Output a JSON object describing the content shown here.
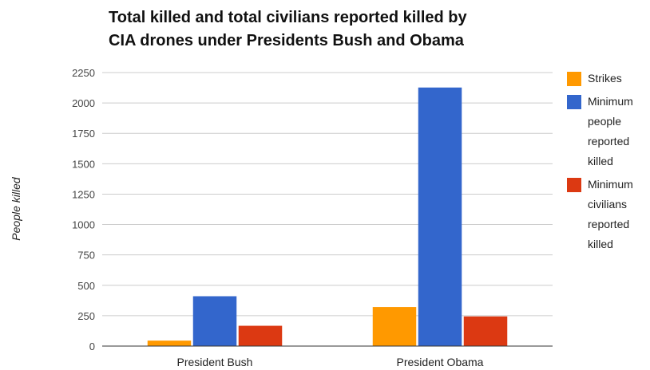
{
  "chart_data": {
    "type": "bar",
    "title_lines": [
      "Total killed and total civilians reported killed by",
      "CIA drones under Presidents Bush and Obama"
    ],
    "xlabel": "",
    "ylabel": "People killed",
    "ylim": [
      0,
      2250
    ],
    "yticks": [
      "0",
      "250",
      "500",
      "750",
      "1000",
      "1250",
      "1500",
      "1750",
      "2000",
      "2250"
    ],
    "ytick_values": [
      0,
      250,
      500,
      750,
      1000,
      1250,
      1500,
      1750,
      2000,
      2250
    ],
    "grid": true,
    "legend_position": "right",
    "categories": [
      "President Bush",
      "President Obama"
    ],
    "series": [
      {
        "name": "Strikes",
        "legend_lines": [
          "Strikes"
        ],
        "color": "#FF9900",
        "values": [
          45,
          321
        ]
      },
      {
        "name": "Minimum people reported killed",
        "legend_lines": [
          "Minimum",
          "people",
          "reported",
          "killed"
        ],
        "color": "#3366CC",
        "values": [
          410,
          2127
        ]
      },
      {
        "name": "Minimum civilians reported killed",
        "legend_lines": [
          "Minimum",
          "civilians",
          "reported",
          "killed"
        ],
        "color": "#DC3912",
        "values": [
          167,
          244
        ]
      }
    ]
  }
}
